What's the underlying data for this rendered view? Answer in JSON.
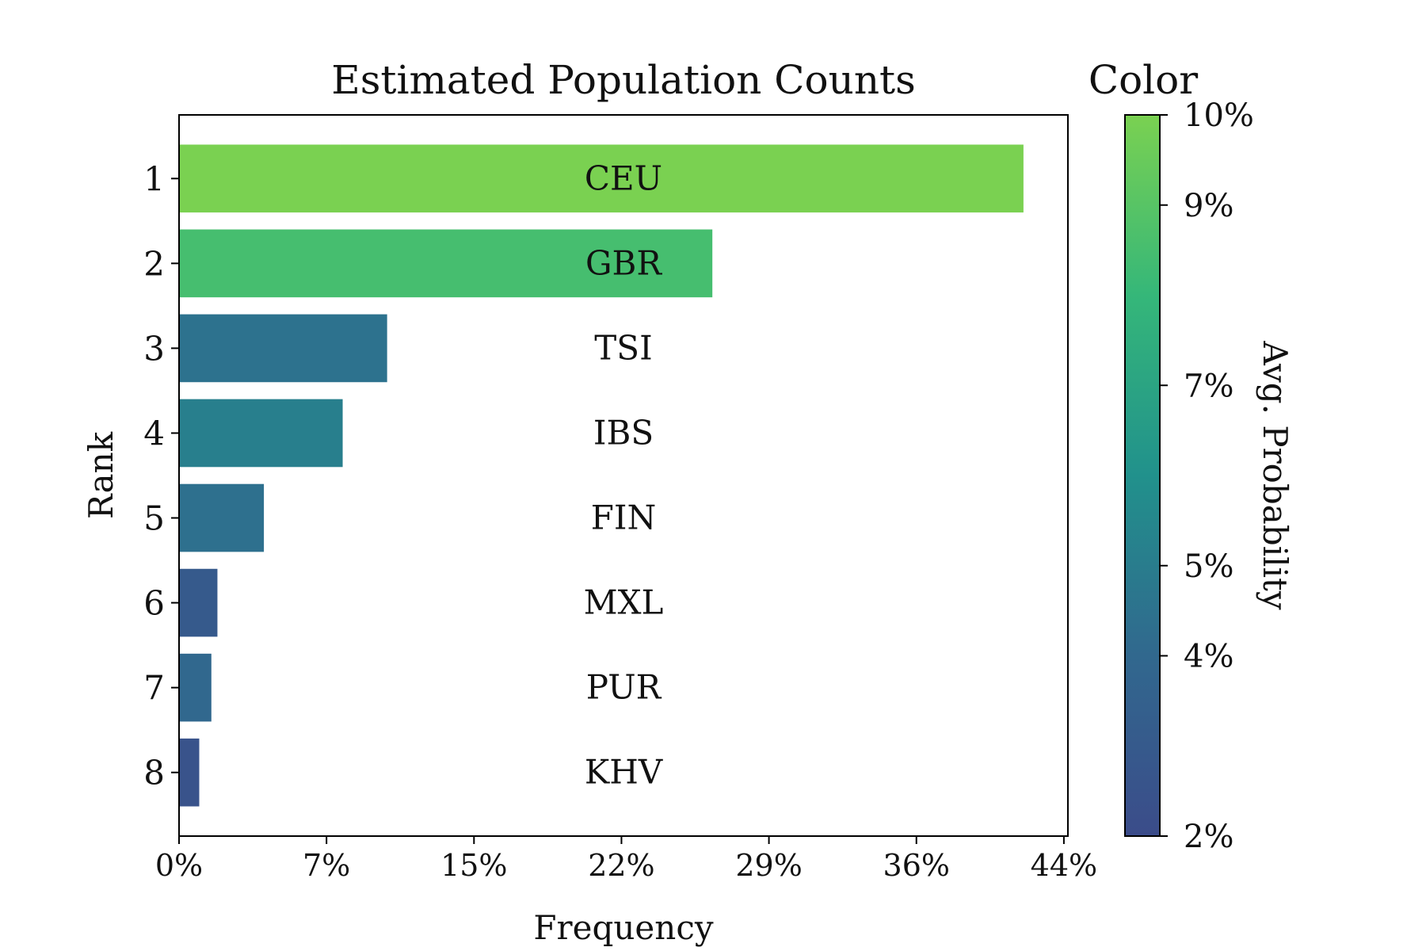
{
  "chart_data": {
    "type": "bar",
    "orientation": "horizontal",
    "title": "Estimated Population Counts",
    "xlabel": "Frequency",
    "ylabel": "Rank",
    "xlim": [
      0,
      44
    ],
    "x_tick_values": [
      0,
      7.3,
      14.6,
      21.9,
      29.2,
      36.5,
      43.8
    ],
    "x_tick_labels": [
      "0%",
      "7%",
      "15%",
      "22%",
      "29%",
      "36%",
      "44%"
    ],
    "categories": [
      "1",
      "2",
      "3",
      "4",
      "5",
      "6",
      "7",
      "8"
    ],
    "bar_labels": [
      "CEU",
      "GBR",
      "TSI",
      "IBS",
      "FIN",
      "MXL",
      "PUR",
      "KHV"
    ],
    "values": [
      41.8,
      26.4,
      10.3,
      8.1,
      4.2,
      1.9,
      1.6,
      1.0
    ],
    "avg_probability": [
      10.0,
      8.5,
      4.5,
      5.1,
      4.4,
      3.0,
      4.0,
      2.5
    ],
    "grid": false,
    "colorbar": {
      "title": "Color",
      "label": "Avg. Probability",
      "colormap": "viridis",
      "range": [
        2,
        10
      ],
      "tick_values": [
        2,
        4,
        5,
        7,
        9,
        10
      ],
      "tick_labels": [
        "2%",
        "4%",
        "5%",
        "7%",
        "9%",
        "10%"
      ],
      "color_low": "#3b4c8a",
      "color_high": "#7ad151"
    }
  }
}
